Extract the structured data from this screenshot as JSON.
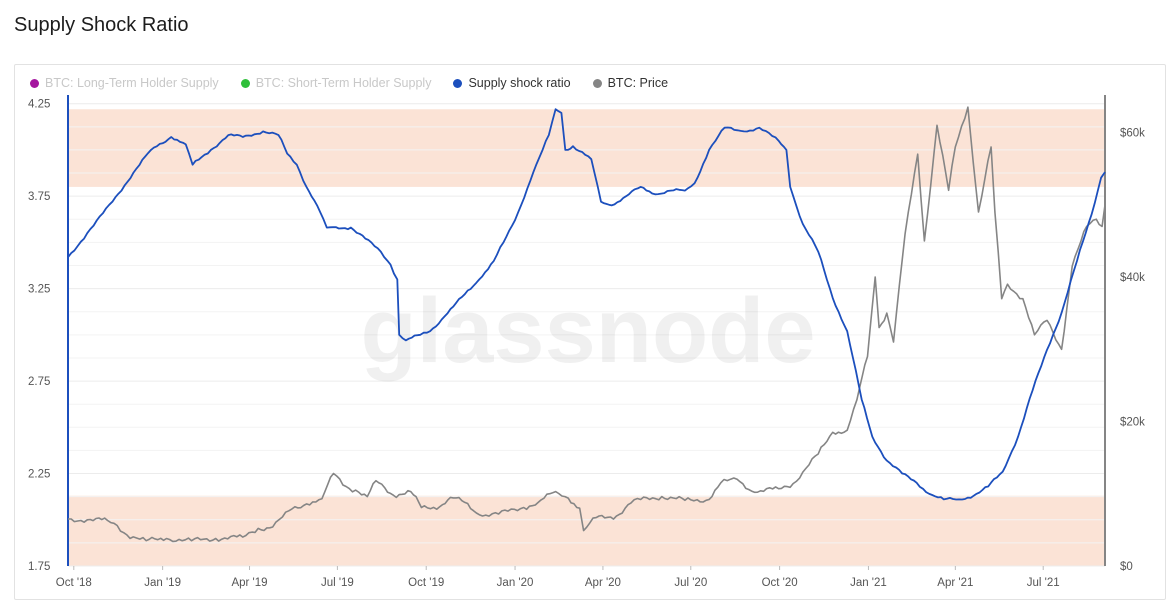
{
  "page": {
    "title": "Supply Shock Ratio"
  },
  "watermark": "glassnode",
  "legend": [
    {
      "label": "BTC: Long-Term Holder Supply",
      "color": "#a5169f",
      "active": false
    },
    {
      "label": "BTC: Short-Term Holder Supply",
      "color": "#2fbf3a",
      "active": false
    },
    {
      "label": "Supply shock ratio",
      "color": "#1c4fbd",
      "active": true
    },
    {
      "label": "BTC: Price",
      "color": "#858585",
      "active": true
    }
  ],
  "colors": {
    "band": "#fbe3d6",
    "ratio": "#1c4fbd",
    "price": "#858585",
    "axis_left": "#1c4fbd",
    "axis_right": "#858585"
  },
  "chart_data": {
    "type": "line",
    "x_ticks": [
      {
        "t": "2018-10-01",
        "label": "Oct '18"
      },
      {
        "t": "2019-01-01",
        "label": "Jan '19"
      },
      {
        "t": "2019-04-01",
        "label": "Apr '19"
      },
      {
        "t": "2019-07-01",
        "label": "Jul '19"
      },
      {
        "t": "2019-10-01",
        "label": "Oct '19"
      },
      {
        "t": "2020-01-01",
        "label": "Jan '20"
      },
      {
        "t": "2020-04-01",
        "label": "Apr '20"
      },
      {
        "t": "2020-07-01",
        "label": "Jul '20"
      },
      {
        "t": "2020-10-01",
        "label": "Oct '20"
      },
      {
        "t": "2021-01-01",
        "label": "Jan '21"
      },
      {
        "t": "2021-04-01",
        "label": "Apr '21"
      },
      {
        "t": "2021-07-01",
        "label": "Jul '21"
      }
    ],
    "x_range": [
      "2018-09-25",
      "2021-09-03"
    ],
    "y_left": {
      "range": [
        1.75,
        4.27
      ],
      "ticks": [
        {
          "v": 1.75,
          "label": "1.75"
        },
        {
          "v": 2.25,
          "label": "2.25"
        },
        {
          "v": 2.75,
          "label": "2.75"
        },
        {
          "v": 3.25,
          "label": "3.25"
        },
        {
          "v": 3.75,
          "label": "3.75"
        },
        {
          "v": 4.25,
          "label": "4.25"
        }
      ]
    },
    "y_right": {
      "range": [
        0,
        64500
      ],
      "ticks": [
        {
          "v": 0,
          "label": "$0"
        },
        {
          "v": 20000,
          "label": "$20k"
        },
        {
          "v": 40000,
          "label": "$40k"
        },
        {
          "v": 60000,
          "label": "$60k"
        }
      ]
    },
    "bands": [
      {
        "from": 3.8,
        "to": 4.22
      },
      {
        "from": 1.75,
        "to": 2.13
      }
    ],
    "grid": true,
    "series": [
      {
        "name": "Supply shock ratio",
        "axis": "left",
        "points": [
          [
            "2018-09-25",
            3.42
          ],
          [
            "2018-10-15",
            3.55
          ],
          [
            "2018-11-10",
            3.72
          ],
          [
            "2018-12-05",
            3.9
          ],
          [
            "2018-12-20",
            4.0
          ],
          [
            "2019-01-10",
            4.07
          ],
          [
            "2019-01-25",
            4.03
          ],
          [
            "2019-02-01",
            3.92
          ],
          [
            "2019-02-20",
            4.0
          ],
          [
            "2019-03-10",
            4.08
          ],
          [
            "2019-03-25",
            4.07
          ],
          [
            "2019-04-15",
            4.1
          ],
          [
            "2019-05-01",
            4.08
          ],
          [
            "2019-05-10",
            3.98
          ],
          [
            "2019-05-20",
            3.92
          ],
          [
            "2019-05-30",
            3.8
          ],
          [
            "2019-06-10",
            3.7
          ],
          [
            "2019-06-20",
            3.58
          ],
          [
            "2019-07-15",
            3.58
          ],
          [
            "2019-07-30",
            3.52
          ],
          [
            "2019-08-15",
            3.45
          ],
          [
            "2019-08-25",
            3.38
          ],
          [
            "2019-09-01",
            3.3
          ],
          [
            "2019-09-03",
            3.0
          ],
          [
            "2019-09-10",
            2.97
          ],
          [
            "2019-09-25",
            3.0
          ],
          [
            "2019-10-05",
            3.02
          ],
          [
            "2019-10-20",
            3.1
          ],
          [
            "2019-11-10",
            3.22
          ],
          [
            "2019-11-25",
            3.3
          ],
          [
            "2019-12-10",
            3.4
          ],
          [
            "2019-12-20",
            3.5
          ],
          [
            "2020-01-01",
            3.62
          ],
          [
            "2020-01-20",
            3.88
          ],
          [
            "2020-02-05",
            4.08
          ],
          [
            "2020-02-12",
            4.22
          ],
          [
            "2020-02-18",
            4.2
          ],
          [
            "2020-02-22",
            4.0
          ],
          [
            "2020-03-01",
            4.02
          ],
          [
            "2020-03-20",
            3.95
          ],
          [
            "2020-03-30",
            3.72
          ],
          [
            "2020-04-10",
            3.7
          ],
          [
            "2020-04-25",
            3.75
          ],
          [
            "2020-05-10",
            3.8
          ],
          [
            "2020-05-25",
            3.76
          ],
          [
            "2020-06-10",
            3.78
          ],
          [
            "2020-06-25",
            3.78
          ],
          [
            "2020-07-05",
            3.82
          ],
          [
            "2020-07-20",
            4.0
          ],
          [
            "2020-08-05",
            4.12
          ],
          [
            "2020-08-25",
            4.1
          ],
          [
            "2020-09-10",
            4.12
          ],
          [
            "2020-09-30",
            4.05
          ],
          [
            "2020-10-08",
            4.0
          ],
          [
            "2020-10-12",
            3.8
          ],
          [
            "2020-10-25",
            3.6
          ],
          [
            "2020-11-10",
            3.45
          ],
          [
            "2020-11-25",
            3.2
          ],
          [
            "2020-12-10",
            3.02
          ],
          [
            "2020-12-25",
            2.65
          ],
          [
            "2021-01-05",
            2.45
          ],
          [
            "2021-01-20",
            2.32
          ],
          [
            "2021-02-05",
            2.25
          ],
          [
            "2021-02-20",
            2.2
          ],
          [
            "2021-03-05",
            2.14
          ],
          [
            "2021-03-20",
            2.11
          ],
          [
            "2021-04-05",
            2.11
          ],
          [
            "2021-04-20",
            2.13
          ],
          [
            "2021-05-05",
            2.18
          ],
          [
            "2021-05-20",
            2.26
          ],
          [
            "2021-06-05",
            2.45
          ],
          [
            "2021-06-20",
            2.7
          ],
          [
            "2021-07-05",
            2.92
          ],
          [
            "2021-07-20",
            3.12
          ],
          [
            "2021-08-05",
            3.4
          ],
          [
            "2021-08-20",
            3.65
          ],
          [
            "2021-08-30",
            3.85
          ],
          [
            "2021-09-03",
            3.88
          ]
        ]
      },
      {
        "name": "BTC: Price",
        "axis": "right",
        "points": [
          [
            "2018-09-25",
            6500
          ],
          [
            "2018-10-15",
            6400
          ],
          [
            "2018-11-05",
            6300
          ],
          [
            "2018-11-15",
            5600
          ],
          [
            "2018-11-25",
            4300
          ],
          [
            "2018-12-15",
            3500
          ],
          [
            "2019-01-05",
            3800
          ],
          [
            "2019-01-31",
            3500
          ],
          [
            "2019-02-25",
            3800
          ],
          [
            "2019-03-25",
            4000
          ],
          [
            "2019-04-10",
            5200
          ],
          [
            "2019-04-25",
            5400
          ],
          [
            "2019-05-15",
            7900
          ],
          [
            "2019-05-30",
            8600
          ],
          [
            "2019-06-15",
            9300
          ],
          [
            "2019-06-27",
            12800
          ],
          [
            "2019-07-10",
            11000
          ],
          [
            "2019-07-20",
            10500
          ],
          [
            "2019-08-01",
            9600
          ],
          [
            "2019-08-10",
            11800
          ],
          [
            "2019-08-28",
            9800
          ],
          [
            "2019-09-15",
            10300
          ],
          [
            "2019-09-26",
            8100
          ],
          [
            "2019-10-15",
            8200
          ],
          [
            "2019-10-26",
            9500
          ],
          [
            "2019-11-10",
            8800
          ],
          [
            "2019-11-25",
            7100
          ],
          [
            "2019-12-15",
            7200
          ],
          [
            "2020-01-10",
            8100
          ],
          [
            "2020-01-25",
            8800
          ],
          [
            "2020-02-12",
            10300
          ],
          [
            "2020-02-25",
            9400
          ],
          [
            "2020-03-08",
            8000
          ],
          [
            "2020-03-12",
            4900
          ],
          [
            "2020-03-25",
            6700
          ],
          [
            "2020-04-15",
            6900
          ],
          [
            "2020-04-30",
            8700
          ],
          [
            "2020-05-10",
            9200
          ],
          [
            "2020-06-01",
            9600
          ],
          [
            "2020-06-25",
            9100
          ],
          [
            "2020-07-20",
            9200
          ],
          [
            "2020-08-01",
            11500
          ],
          [
            "2020-08-18",
            12000
          ],
          [
            "2020-09-05",
            10200
          ],
          [
            "2020-09-30",
            10700
          ],
          [
            "2020-10-15",
            11400
          ],
          [
            "2020-10-25",
            13000
          ],
          [
            "2020-11-10",
            15500
          ],
          [
            "2020-11-25",
            18500
          ],
          [
            "2020-12-10",
            18800
          ],
          [
            "2020-12-20",
            23000
          ],
          [
            "2020-12-31",
            29000
          ],
          [
            "2021-01-08",
            40000
          ],
          [
            "2021-01-12",
            33000
          ],
          [
            "2021-01-20",
            35000
          ],
          [
            "2021-01-27",
            31000
          ],
          [
            "2021-02-08",
            46000
          ],
          [
            "2021-02-21",
            57000
          ],
          [
            "2021-02-28",
            45000
          ],
          [
            "2021-03-13",
            61000
          ],
          [
            "2021-03-25",
            52000
          ],
          [
            "2021-04-01",
            58000
          ],
          [
            "2021-04-14",
            63500
          ],
          [
            "2021-04-25",
            49000
          ],
          [
            "2021-05-08",
            58000
          ],
          [
            "2021-05-12",
            49000
          ],
          [
            "2021-05-19",
            37000
          ],
          [
            "2021-05-25",
            39000
          ],
          [
            "2021-06-10",
            37000
          ],
          [
            "2021-06-22",
            32000
          ],
          [
            "2021-07-05",
            34000
          ],
          [
            "2021-07-20",
            30000
          ],
          [
            "2021-07-31",
            41500
          ],
          [
            "2021-08-15",
            47000
          ],
          [
            "2021-08-25",
            48000
          ],
          [
            "2021-08-31",
            47000
          ],
          [
            "2021-09-03",
            50000
          ]
        ]
      }
    ]
  }
}
